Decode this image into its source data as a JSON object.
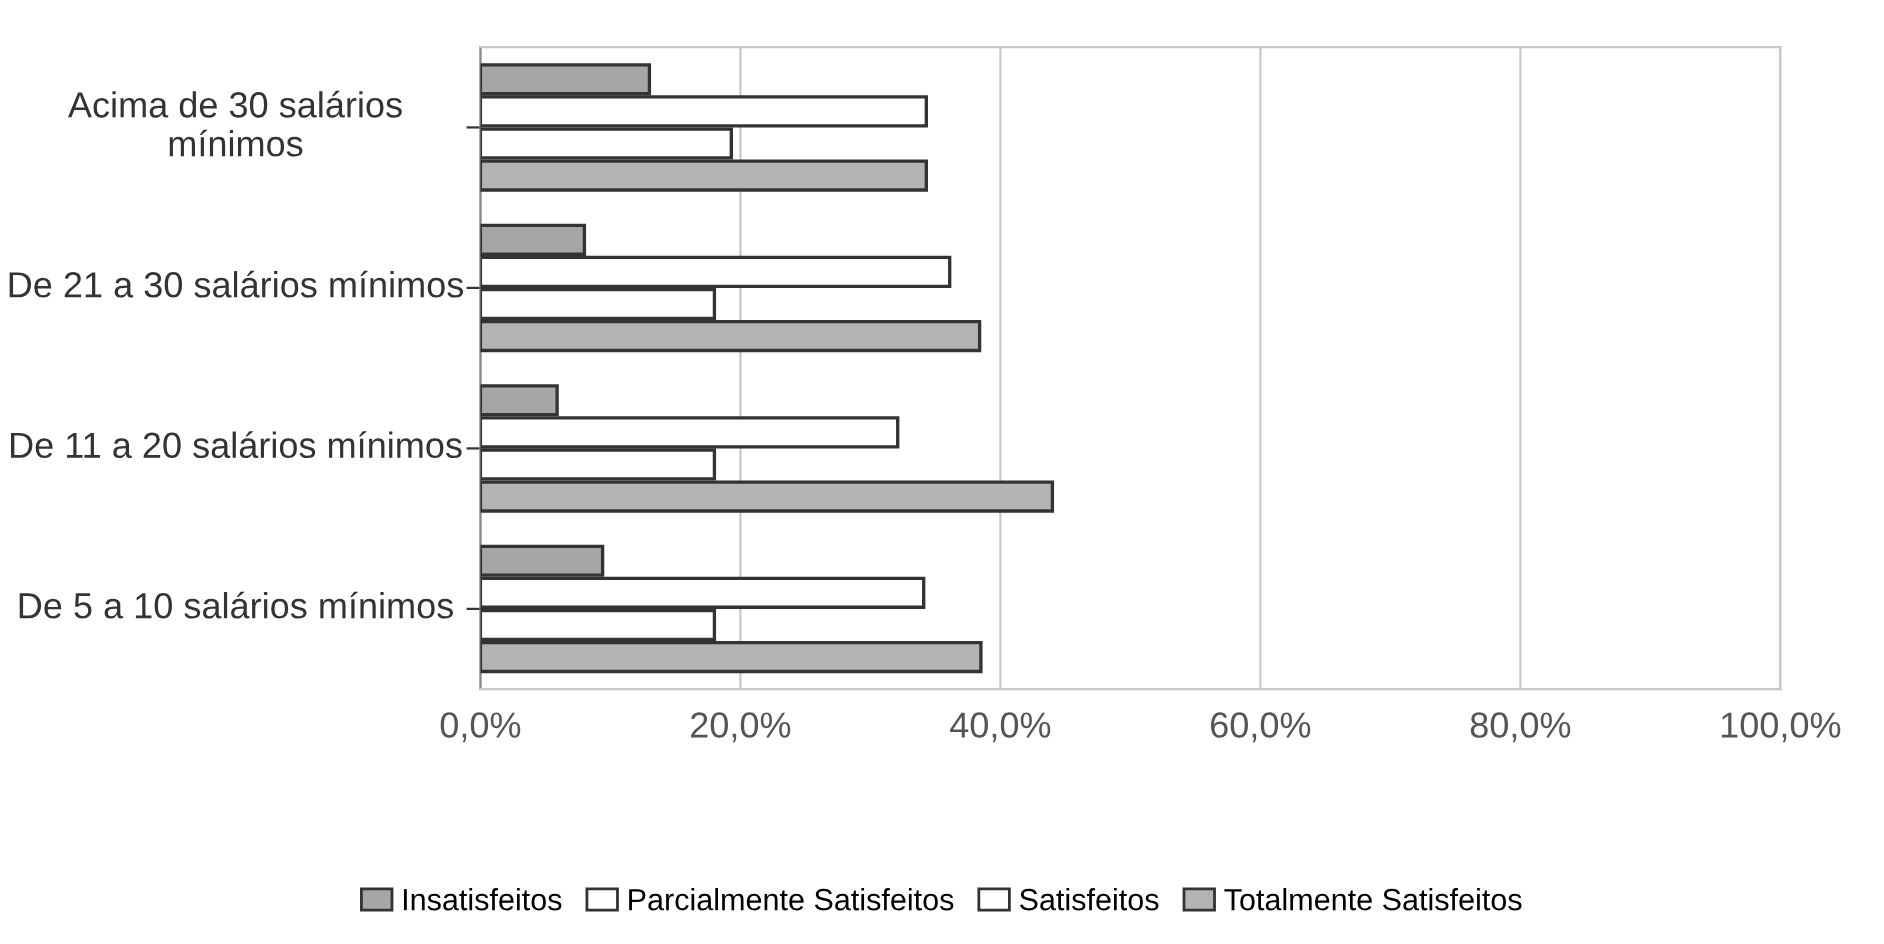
{
  "chart_data": {
    "type": "bar",
    "orientation": "horizontal",
    "categories": [
      "Acima de 30 salários mínimos",
      "De 21 a 30 salários mínimos",
      "De 11 a 20 salários mínimos",
      "De 5 a 10 salários mínimos"
    ],
    "series": [
      {
        "name": "Insatisfeitos",
        "color": "#a6a6a6",
        "values": [
          13.0,
          8.0,
          5.9,
          9.4
        ]
      },
      {
        "name": "Parcialmente Satisfeitos",
        "color": "#ffffff",
        "values": [
          34.3,
          36.1,
          32.1,
          34.1
        ]
      },
      {
        "name": "Satisfeitos",
        "color": "#ffffff",
        "values": [
          19.3,
          18.0,
          18.0,
          18.0
        ]
      },
      {
        "name": "Totalmente Satisfeitos",
        "color": "#b4b4b4",
        "values": [
          34.3,
          38.4,
          44.0,
          38.5
        ]
      }
    ],
    "xlim": [
      0,
      100
    ],
    "xticks": [
      {
        "value": 0,
        "label": "0,0%"
      },
      {
        "value": 20,
        "label": "20,0%"
      },
      {
        "value": 40,
        "label": "40,0%"
      },
      {
        "value": 60,
        "label": "60,0%"
      },
      {
        "value": 80,
        "label": "80,0%"
      },
      {
        "value": 100,
        "label": "100,0%"
      }
    ],
    "grid": "x",
    "legend": "bottom"
  }
}
